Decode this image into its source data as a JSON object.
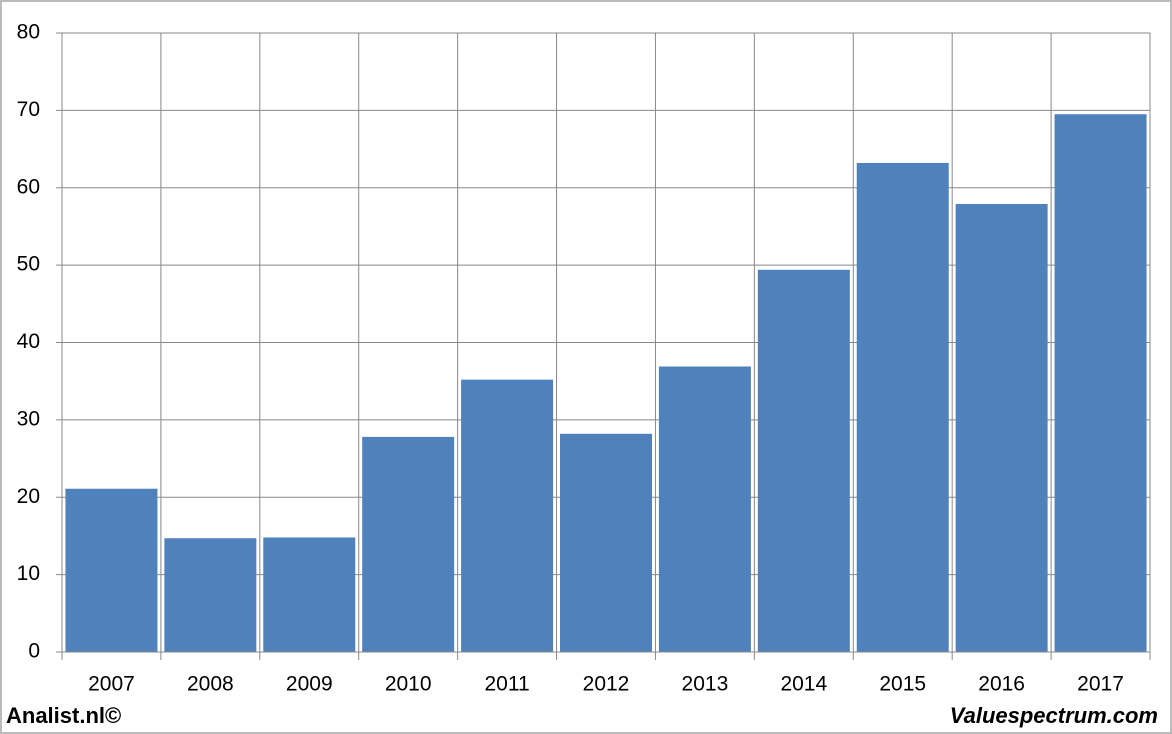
{
  "chart_data": {
    "type": "bar",
    "categories": [
      "2007",
      "2008",
      "2009",
      "2010",
      "2011",
      "2012",
      "2013",
      "2014",
      "2015",
      "2016",
      "2017"
    ],
    "values": [
      21.1,
      14.7,
      14.8,
      27.8,
      35.2,
      28.2,
      36.9,
      49.4,
      63.2,
      57.9,
      69.5
    ],
    "color": "#4f81bd",
    "ylim": [
      0,
      80
    ],
    "yticks": [
      0,
      10,
      20,
      30,
      40,
      50,
      60,
      70,
      80
    ],
    "grid": true,
    "footer_left": "Analist.nl©",
    "footer_right": "Valuespectrum.com"
  }
}
